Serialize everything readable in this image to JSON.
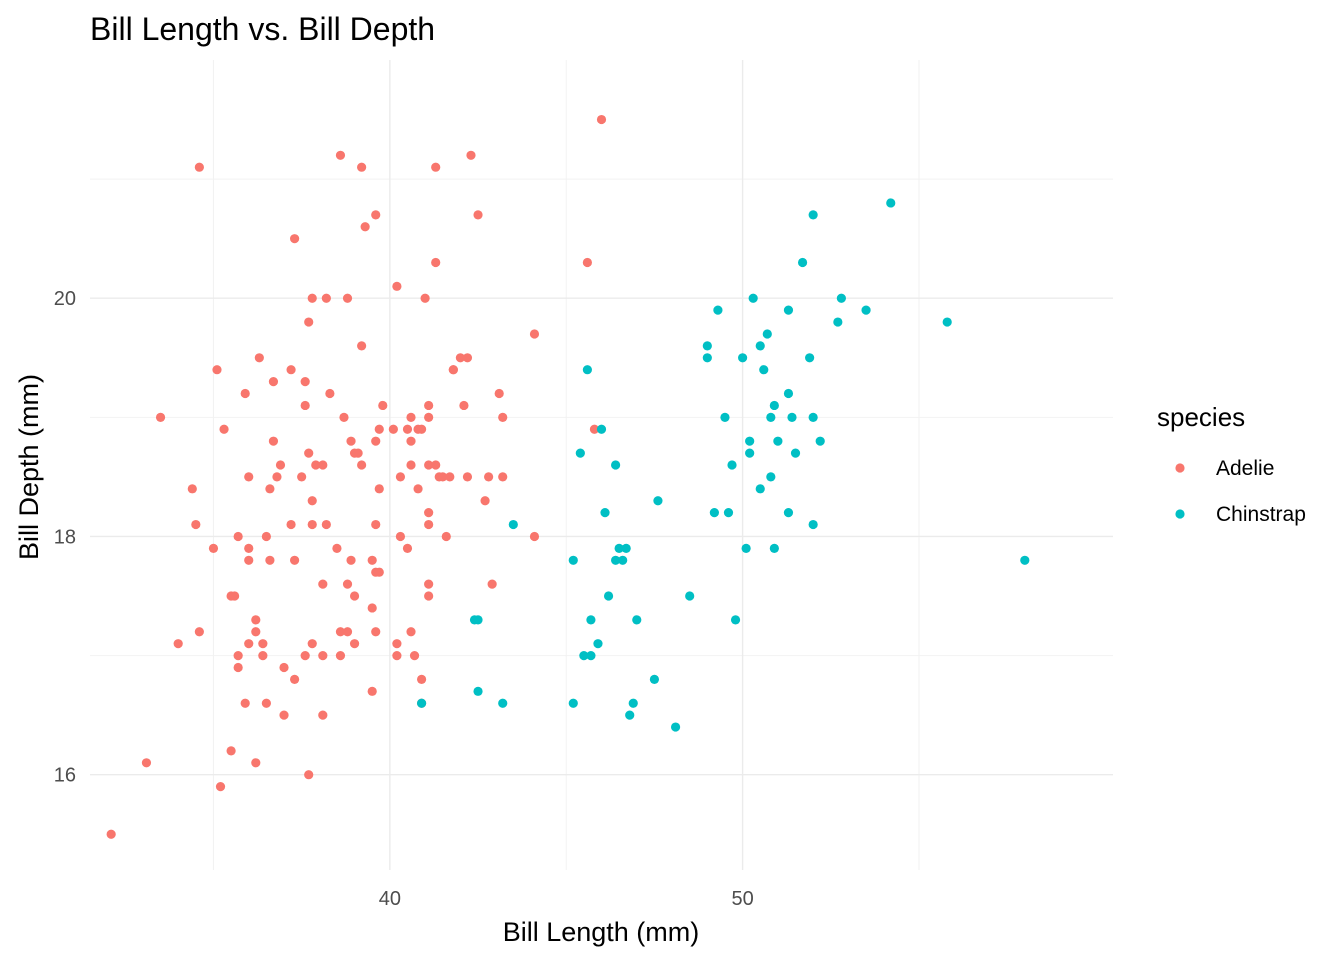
{
  "chart_data": {
    "type": "scatter",
    "title": "Bill Length vs. Bill Depth",
    "xlabel": "Bill Length (mm)",
    "ylabel": "Bill Depth (mm)",
    "xlim": [
      31.5,
      60.5
    ],
    "ylim": [
      15.2,
      22.0
    ],
    "x_ticks": [
      40,
      50
    ],
    "y_ticks": [
      16,
      18,
      20
    ],
    "x_tick_labels": [
      "40",
      "50"
    ],
    "y_tick_labels": [
      "16",
      "18",
      "20"
    ],
    "grid": true,
    "legend": {
      "title": "species",
      "position": "right"
    },
    "series": [
      {
        "name": "Adelie",
        "color": "#F8766D",
        "points": [
          [
            32.1,
            15.5
          ],
          [
            33.1,
            16.1
          ],
          [
            33.5,
            19.0
          ],
          [
            34.0,
            17.1
          ],
          [
            34.4,
            18.4
          ],
          [
            34.5,
            18.1
          ],
          [
            34.6,
            17.2
          ],
          [
            34.6,
            21.1
          ],
          [
            35.0,
            17.9
          ],
          [
            35.1,
            19.4
          ],
          [
            35.2,
            15.9
          ],
          [
            35.3,
            18.9
          ],
          [
            35.5,
            16.2
          ],
          [
            35.5,
            17.5
          ],
          [
            35.6,
            17.5
          ],
          [
            35.7,
            16.9
          ],
          [
            35.7,
            17.0
          ],
          [
            35.7,
            18.0
          ],
          [
            35.9,
            16.6
          ],
          [
            35.9,
            19.2
          ],
          [
            36.0,
            17.1
          ],
          [
            36.0,
            17.8
          ],
          [
            36.0,
            17.9
          ],
          [
            36.0,
            18.5
          ],
          [
            36.2,
            16.1
          ],
          [
            36.2,
            17.2
          ],
          [
            36.2,
            17.3
          ],
          [
            36.3,
            19.5
          ],
          [
            36.4,
            17.0
          ],
          [
            36.4,
            17.1
          ],
          [
            36.5,
            16.6
          ],
          [
            36.5,
            18.0
          ],
          [
            36.6,
            17.8
          ],
          [
            36.6,
            18.4
          ],
          [
            36.7,
            18.8
          ],
          [
            36.7,
            19.3
          ],
          [
            36.8,
            18.5
          ],
          [
            36.9,
            18.6
          ],
          [
            37.0,
            16.5
          ],
          [
            37.0,
            16.9
          ],
          [
            37.2,
            18.1
          ],
          [
            37.2,
            19.4
          ],
          [
            37.3,
            16.8
          ],
          [
            37.3,
            17.8
          ],
          [
            37.3,
            20.5
          ],
          [
            37.5,
            18.5
          ],
          [
            37.6,
            17.0
          ],
          [
            37.6,
            19.1
          ],
          [
            37.6,
            19.3
          ],
          [
            37.7,
            16.0
          ],
          [
            37.7,
            18.7
          ],
          [
            37.7,
            19.8
          ],
          [
            37.8,
            17.1
          ],
          [
            37.8,
            18.1
          ],
          [
            37.8,
            18.3
          ],
          [
            37.8,
            20.0
          ],
          [
            37.9,
            18.6
          ],
          [
            38.1,
            16.5
          ],
          [
            38.1,
            17.0
          ],
          [
            38.1,
            17.6
          ],
          [
            38.1,
            18.6
          ],
          [
            38.2,
            18.1
          ],
          [
            38.2,
            20.0
          ],
          [
            38.3,
            19.2
          ],
          [
            38.5,
            17.9
          ],
          [
            38.6,
            17.0
          ],
          [
            38.6,
            17.2
          ],
          [
            38.6,
            21.2
          ],
          [
            38.7,
            19.0
          ],
          [
            38.8,
            17.2
          ],
          [
            38.8,
            17.6
          ],
          [
            38.8,
            20.0
          ],
          [
            38.9,
            17.8
          ],
          [
            38.9,
            18.8
          ],
          [
            39.0,
            17.1
          ],
          [
            39.0,
            17.5
          ],
          [
            39.0,
            18.7
          ],
          [
            39.1,
            18.7
          ],
          [
            39.2,
            18.6
          ],
          [
            39.2,
            19.6
          ],
          [
            39.2,
            21.1
          ],
          [
            39.3,
            20.6
          ],
          [
            39.5,
            16.7
          ],
          [
            39.5,
            17.4
          ],
          [
            39.5,
            17.8
          ],
          [
            39.6,
            17.2
          ],
          [
            39.6,
            17.7
          ],
          [
            39.6,
            18.1
          ],
          [
            39.6,
            18.8
          ],
          [
            39.6,
            20.7
          ],
          [
            39.7,
            17.7
          ],
          [
            39.7,
            18.4
          ],
          [
            39.7,
            18.9
          ],
          [
            39.8,
            19.1
          ],
          [
            40.1,
            18.9
          ],
          [
            40.2,
            17.0
          ],
          [
            40.2,
            17.1
          ],
          [
            40.2,
            20.1
          ],
          [
            40.3,
            18.0
          ],
          [
            40.3,
            18.5
          ],
          [
            40.5,
            17.9
          ],
          [
            40.5,
            18.9
          ],
          [
            40.6,
            17.2
          ],
          [
            40.6,
            18.6
          ],
          [
            40.6,
            18.8
          ],
          [
            40.6,
            19.0
          ],
          [
            40.7,
            17.0
          ],
          [
            40.8,
            18.4
          ],
          [
            40.8,
            18.9
          ],
          [
            40.9,
            16.6
          ],
          [
            40.9,
            16.8
          ],
          [
            40.9,
            18.9
          ],
          [
            41.0,
            20.0
          ],
          [
            41.1,
            17.5
          ],
          [
            41.1,
            17.6
          ],
          [
            41.1,
            18.1
          ],
          [
            41.1,
            18.2
          ],
          [
            41.1,
            18.6
          ],
          [
            41.1,
            19.0
          ],
          [
            41.1,
            19.1
          ],
          [
            41.3,
            18.6
          ],
          [
            41.3,
            20.3
          ],
          [
            41.3,
            21.1
          ],
          [
            41.4,
            18.5
          ],
          [
            41.5,
            18.5
          ],
          [
            41.6,
            18.0
          ],
          [
            41.7,
            18.5
          ],
          [
            41.8,
            19.4
          ],
          [
            41.8,
            19.4
          ],
          [
            42.0,
            19.5
          ],
          [
            42.1,
            19.1
          ],
          [
            42.2,
            18.5
          ],
          [
            42.2,
            19.5
          ],
          [
            42.3,
            21.2
          ],
          [
            42.5,
            20.7
          ],
          [
            42.7,
            18.3
          ],
          [
            42.8,
            18.5
          ],
          [
            42.9,
            17.6
          ],
          [
            43.2,
            18.5
          ],
          [
            43.2,
            19.0
          ],
          [
            43.1,
            19.2
          ],
          [
            44.1,
            18.0
          ],
          [
            44.1,
            19.7
          ],
          [
            45.6,
            20.3
          ],
          [
            45.8,
            18.9
          ],
          [
            46.0,
            21.5
          ]
        ]
      },
      {
        "name": "Chinstrap",
        "color": "#00BFC4",
        "points": [
          [
            40.9,
            16.6
          ],
          [
            42.4,
            17.3
          ],
          [
            42.5,
            16.7
          ],
          [
            42.5,
            17.3
          ],
          [
            43.2,
            16.6
          ],
          [
            43.5,
            18.1
          ],
          [
            45.2,
            16.6
          ],
          [
            45.2,
            17.8
          ],
          [
            45.4,
            18.7
          ],
          [
            45.5,
            17.0
          ],
          [
            45.6,
            19.4
          ],
          [
            45.7,
            17.0
          ],
          [
            45.7,
            17.3
          ],
          [
            45.9,
            17.1
          ],
          [
            46.0,
            18.9
          ],
          [
            46.1,
            18.2
          ],
          [
            46.2,
            17.5
          ],
          [
            46.4,
            17.8
          ],
          [
            46.4,
            18.6
          ],
          [
            46.5,
            17.9
          ],
          [
            46.6,
            17.8
          ],
          [
            46.7,
            17.9
          ],
          [
            46.8,
            16.5
          ],
          [
            46.9,
            16.6
          ],
          [
            47.0,
            17.3
          ],
          [
            47.5,
            16.8
          ],
          [
            47.6,
            18.3
          ],
          [
            48.1,
            16.4
          ],
          [
            48.5,
            17.5
          ],
          [
            49.0,
            19.5
          ],
          [
            49.0,
            19.6
          ],
          [
            49.2,
            18.2
          ],
          [
            49.3,
            19.9
          ],
          [
            49.5,
            19.0
          ],
          [
            49.6,
            18.2
          ],
          [
            49.7,
            18.6
          ],
          [
            49.8,
            17.3
          ],
          [
            50.0,
            19.5
          ],
          [
            50.1,
            17.9
          ],
          [
            50.2,
            18.7
          ],
          [
            50.2,
            18.8
          ],
          [
            50.3,
            20.0
          ],
          [
            50.5,
            18.4
          ],
          [
            50.5,
            19.6
          ],
          [
            50.6,
            19.4
          ],
          [
            50.7,
            19.7
          ],
          [
            50.8,
            18.5
          ],
          [
            50.8,
            19.0
          ],
          [
            50.9,
            17.9
          ],
          [
            50.9,
            19.1
          ],
          [
            51.0,
            18.8
          ],
          [
            51.3,
            18.2
          ],
          [
            51.3,
            19.2
          ],
          [
            51.3,
            19.9
          ],
          [
            51.4,
            19.0
          ],
          [
            51.5,
            18.7
          ],
          [
            51.7,
            20.3
          ],
          [
            51.9,
            19.5
          ],
          [
            52.0,
            18.1
          ],
          [
            52.0,
            19.0
          ],
          [
            52.0,
            20.7
          ],
          [
            52.2,
            18.8
          ],
          [
            52.7,
            19.8
          ],
          [
            52.8,
            20.0
          ],
          [
            53.5,
            19.9
          ],
          [
            54.2,
            20.8
          ],
          [
            55.8,
            19.8
          ],
          [
            58.0,
            17.8
          ]
        ]
      }
    ]
  }
}
